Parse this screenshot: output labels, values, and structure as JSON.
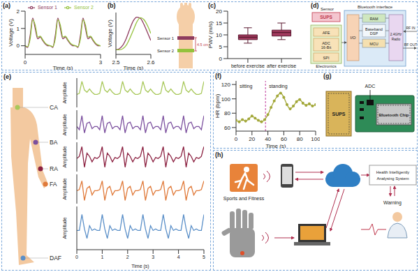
{
  "chart_data": [
    {
      "panel": "(a)",
      "type": "line",
      "x_label": "Time (s)",
      "y_label": "Voltage (V)",
      "x": [
        0,
        0.1,
        0.2,
        0.3,
        0.4,
        0.5,
        0.6,
        0.7,
        0.8,
        0.9,
        1,
        1.1,
        1.2,
        1.3,
        1.4,
        1.5,
        1.6,
        1.7,
        1.8,
        1.9,
        2,
        2.1,
        2.2,
        2.3,
        2.4,
        2.5,
        2.6,
        2.7,
        2.8,
        2.9,
        3
      ],
      "series": [
        {
          "name": "Sensor 1",
          "color": "#8e3b5e",
          "values": [
            0,
            -0.1,
            0.6,
            1.6,
            1.0,
            0.4,
            0.5,
            0.3,
            0.1,
            0.0,
            0,
            -0.1,
            0.6,
            1.6,
            1.0,
            0.4,
            0.5,
            0.3,
            0.1,
            0.0,
            0,
            -0.1,
            0.6,
            1.6,
            1.0,
            0.4,
            0.5,
            0.3,
            0.1,
            0.0,
            0
          ]
        },
        {
          "name": "Sensor 2",
          "color": "#94c23c",
          "values": [
            0,
            -0.05,
            0.4,
            1.5,
            1.2,
            0.5,
            0.55,
            0.35,
            0.15,
            0.05,
            0,
            -0.05,
            0.4,
            1.5,
            1.2,
            0.5,
            0.55,
            0.35,
            0.15,
            0.05,
            0,
            -0.05,
            0.4,
            1.5,
            1.2,
            0.5,
            0.55,
            0.35,
            0.15,
            0.05,
            0
          ]
        }
      ],
      "xlim": [
        0,
        3
      ],
      "xticks": [
        0,
        3
      ],
      "ylim": [
        -0.5,
        2
      ],
      "yticks": [
        0,
        1,
        2
      ],
      "legend": "upper right"
    },
    {
      "panel": "(b)",
      "type": "line",
      "x_label": "Time (s)",
      "y_label": "Voltage (V)",
      "x": [
        2.5,
        2.51,
        2.52,
        2.53,
        2.54,
        2.55,
        2.56,
        2.57,
        2.58,
        2.59,
        2.6
      ],
      "series": [
        {
          "name": "Sensor 1",
          "color": "#8e3b5e",
          "values": [
            0.0,
            0.05,
            0.2,
            0.5,
            0.9,
            1.25,
            1.4,
            1.35,
            1.1,
            0.75,
            0.4
          ]
        },
        {
          "name": "Sensor 2",
          "color": "#94c23c",
          "values": [
            0.0,
            0.0,
            0.05,
            0.2,
            0.5,
            0.85,
            1.2,
            1.38,
            1.3,
            1.05,
            0.7
          ]
        }
      ],
      "xlim": [
        2.5,
        2.6
      ],
      "xticks": [
        2.5,
        2.6
      ],
      "ylim": [
        -0.2,
        1.6
      ],
      "tick_labels": "x",
      "annotation": "4.5 cm"
    },
    {
      "panel": "(c)",
      "type": "box",
      "y_label": "PWV (m/s)",
      "categories": [
        "before exercise",
        "after exercise"
      ],
      "boxes": [
        {
          "min": 6.5,
          "q1": 8,
          "median": 9,
          "q3": 10,
          "max": 13
        },
        {
          "min": 8,
          "q1": 9.5,
          "median": 11,
          "q3": 12,
          "max": 15
        }
      ],
      "color": "#a33a5f",
      "ylim": [
        0,
        20
      ],
      "yticks": [
        0,
        5,
        10,
        15,
        20
      ]
    },
    {
      "panel": "(e)",
      "type": "line",
      "x_label": "Time (s)",
      "y_label": "Amplitude",
      "x": [
        0,
        0.1,
        0.2,
        0.3,
        0.4,
        0.5,
        0.6,
        0.7,
        0.8,
        0.9,
        1,
        1.1,
        1.2,
        1.3,
        1.4,
        1.5,
        1.6,
        1.7,
        1.8,
        1.9,
        2,
        2.1,
        2.2,
        2.3,
        2.4,
        2.5,
        2.6,
        2.7,
        2.8,
        2.9,
        3,
        3.1,
        3.2,
        3.3,
        3.4,
        3.5,
        3.6,
        3.7,
        3.8,
        3.9,
        4,
        4.1,
        4.2,
        4.3,
        4.4,
        4.5,
        4.6,
        4.7,
        4.8,
        4.9,
        5
      ],
      "series": [
        {
          "name": "CA",
          "color": "#a8c85a",
          "values": [
            0,
            0.1,
            1.2,
            0.4,
            0.2,
            0.5,
            0.2,
            0,
            0,
            0.1,
            1.2,
            0.4,
            0.2,
            0.5,
            0.2,
            0,
            0,
            0.1,
            1.2,
            0.4,
            0.2,
            0.5,
            0.2,
            0,
            0,
            0.1,
            1.2,
            0.4,
            0.2,
            0.5,
            0.2,
            0,
            0,
            0.1,
            1.2,
            0.4,
            0.2,
            0.5,
            0.2,
            0,
            0,
            0.1,
            1.2,
            0.4,
            0.2,
            0.5,
            0.2,
            0,
            0,
            0.1,
            1.2
          ]
        },
        {
          "name": "BA",
          "color": "#7b4f9e",
          "values": [
            0,
            -0.3,
            1.0,
            -0.6,
            0.3,
            0.4,
            -0.2,
            0,
            0,
            -0.3,
            1.0,
            -0.6,
            0.3,
            0.4,
            -0.2,
            0,
            0,
            -0.3,
            1.0,
            -0.6,
            0.3,
            0.4,
            -0.2,
            0,
            0,
            -0.3,
            1.0,
            -0.6,
            0.3,
            0.4,
            -0.2,
            0,
            0,
            -0.3,
            1.0,
            -0.6,
            0.3,
            0.4,
            -0.2,
            0,
            0,
            -0.3,
            1.0,
            -0.6,
            0.3,
            0.4,
            -0.2,
            0,
            0,
            -0.3,
            1.0
          ]
        },
        {
          "name": "RA",
          "color": "#8b2040",
          "values": [
            0,
            0.2,
            1.1,
            -0.8,
            0.5,
            0.2,
            -0.3,
            0.1,
            0,
            0.2,
            1.1,
            -0.8,
            0.5,
            0.2,
            -0.3,
            0.1,
            0,
            0.2,
            1.1,
            -0.8,
            0.5,
            0.2,
            -0.3,
            0.1,
            0,
            0.2,
            1.1,
            -0.8,
            0.5,
            0.2,
            -0.3,
            0.1,
            0,
            0.2,
            1.1,
            -0.8,
            0.5,
            0.2,
            -0.3,
            0.1,
            0,
            0.2,
            1.1,
            -0.8,
            0.5,
            0.2,
            -0.3,
            0.1,
            0,
            0.2,
            1.1
          ]
        },
        {
          "name": "FA",
          "color": "#e07a3a",
          "values": [
            0,
            0.1,
            0.9,
            -0.9,
            0.2,
            0.4,
            -0.4,
            0,
            0,
            0.1,
            0.9,
            -0.9,
            0.2,
            0.4,
            -0.4,
            0,
            0,
            0.1,
            0.9,
            -0.9,
            0.2,
            0.4,
            -0.4,
            0,
            0,
            0.1,
            0.9,
            -0.9,
            0.2,
            0.4,
            -0.4,
            0,
            0,
            0.1,
            0.9,
            -0.9,
            0.2,
            0.4,
            -0.4,
            0,
            0,
            0.1,
            0.9,
            -0.9,
            0.2,
            0.4,
            -0.4,
            0,
            0,
            0.1,
            0.9
          ]
        },
        {
          "name": "DAF",
          "color": "#5a8fc8",
          "values": [
            0,
            0,
            1.0,
            0.1,
            -0.5,
            0.3,
            0,
            0.1,
            0,
            0,
            1.0,
            0.1,
            -0.5,
            0.3,
            0,
            0.1,
            0,
            0,
            1.0,
            0.1,
            -0.5,
            0.3,
            0,
            0.1,
            0,
            0,
            1.0,
            0.1,
            -0.5,
            0.3,
            0,
            0.1,
            0,
            0,
            1.0,
            0.1,
            -0.5,
            0.3,
            0,
            0.1,
            0,
            0,
            1.0,
            0.1,
            -0.5,
            0.3,
            0,
            0.1,
            0,
            0,
            1.0
          ]
        }
      ],
      "xlim": [
        0,
        5
      ],
      "xticks": [
        0,
        1,
        2,
        3,
        4,
        5
      ],
      "ylim": [
        -1.2,
        1.5
      ],
      "tick_labels": "x"
    },
    {
      "panel": "(f)",
      "type": "line",
      "x_label": "Time (s)",
      "y_label": "HR (bpm)",
      "x": [
        0,
        4,
        8,
        12,
        16,
        20,
        24,
        28,
        32,
        36,
        40,
        44,
        48,
        52,
        56,
        60,
        64,
        68,
        72,
        76,
        80,
        84,
        88,
        92,
        96,
        100
      ],
      "series": [
        {
          "name": "HR",
          "color": "#a3a83a",
          "values": [
            70,
            68,
            71,
            69,
            72,
            76,
            73,
            70,
            68,
            71,
            78,
            88,
            97,
            104,
            108,
            102,
            92,
            86,
            90,
            96,
            99,
            94,
            91,
            93,
            90,
            92
          ]
        }
      ],
      "marker": "circle",
      "xlim": [
        0,
        100
      ],
      "xticks": [
        0,
        20,
        40,
        60,
        80,
        100
      ],
      "ylim": [
        55,
        125
      ],
      "yticks": [
        60,
        80,
        100,
        120
      ],
      "annotations": [
        "sitting",
        "standing"
      ],
      "divider_x": 37
    }
  ],
  "diagrams": {
    "d": {
      "panel": "(d)",
      "sensor_title": "Sensor",
      "sensor_block": "SUPS",
      "electronics_title": "Electronics",
      "electronics_blocks": [
        [
          "AFE"
        ],
        [
          "ADC",
          "16-Bit"
        ],
        [
          "SPI"
        ]
      ],
      "bluetooth_title": "Bluetooth interface",
      "io": "I/O",
      "bluetooth_blocks": [
        [
          "RAM"
        ],
        [
          "Baseband",
          "DSP"
        ],
        [
          "MCU"
        ]
      ],
      "radio": [
        "2.4GHz",
        "Radio"
      ],
      "rf": [
        "RF IN",
        "RF OUT"
      ]
    },
    "g": {
      "panel": "(g)",
      "sups": "SUPS",
      "adc": "ADC",
      "chip": "Bluetooth Chip"
    },
    "h": {
      "panel": "(h)",
      "sports": "Sports and Fitness",
      "system": [
        "Health Intelligently",
        "Analysing System"
      ],
      "warning": "Warning"
    }
  }
}
